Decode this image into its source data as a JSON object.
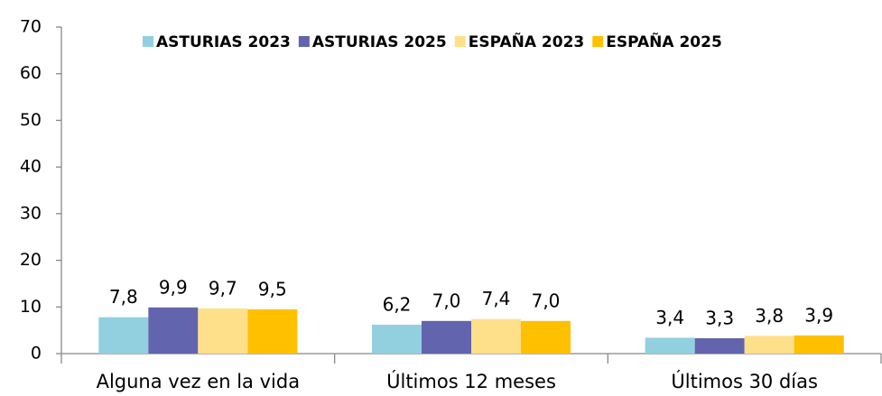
{
  "chart_data": {
    "type": "bar",
    "categories": [
      "Alguna vez en la vida",
      "Últimos 12 meses",
      "Últimos 30 días"
    ],
    "series": [
      {
        "name": "ASTURIAS 2023",
        "color": "#92d0e0",
        "values": [
          7.8,
          6.2,
          3.4
        ],
        "value_labels": [
          "7,8",
          "6,2",
          "3,4"
        ]
      },
      {
        "name": "ASTURIAS 2025",
        "color": "#6264ae",
        "values": [
          9.9,
          7.0,
          3.3
        ],
        "value_labels": [
          "9,9",
          "7,0",
          "3,3"
        ]
      },
      {
        "name": "ESPAÑA 2023",
        "color": "#ffe08a",
        "values": [
          9.7,
          7.4,
          3.8
        ],
        "value_labels": [
          "9,7",
          "7,4",
          "3,8"
        ]
      },
      {
        "name": "ESPAÑA 2025",
        "color": "#ffc000",
        "values": [
          9.5,
          7.0,
          3.9
        ],
        "value_labels": [
          "9,5",
          "7,0",
          "3,9"
        ]
      }
    ],
    "ylim": [
      0,
      70
    ],
    "yticks": [
      0,
      10,
      20,
      30,
      40,
      50,
      60,
      70
    ],
    "grid": false,
    "legend": "top"
  }
}
